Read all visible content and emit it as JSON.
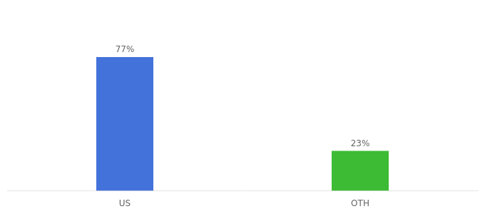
{
  "chart_data": {
    "type": "bar",
    "categories": [
      "US",
      "OTH"
    ],
    "values": [
      77,
      23
    ],
    "value_labels": [
      "77%",
      "23%"
    ],
    "data_labels": true,
    "colors": [
      "#4472db",
      "#3dbb35"
    ],
    "ylim": [
      0,
      100
    ],
    "grid": false,
    "tick_labels": "x"
  }
}
